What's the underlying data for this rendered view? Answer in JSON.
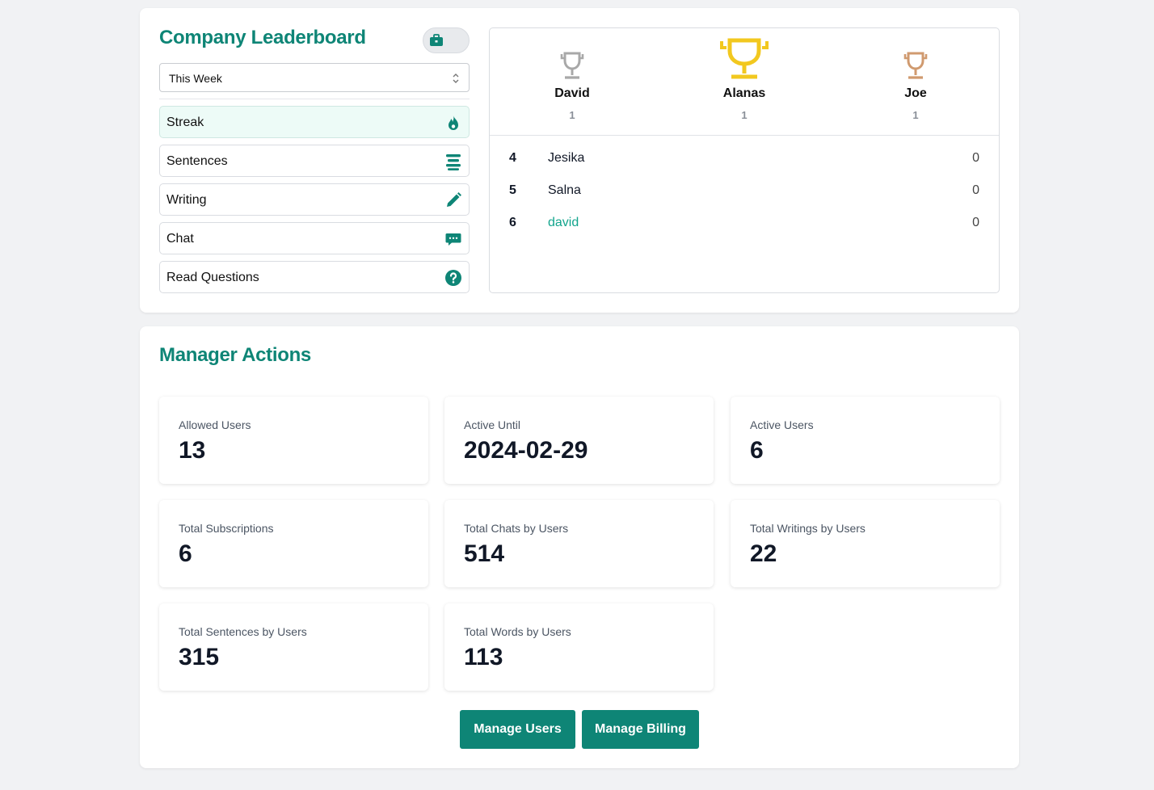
{
  "leaderboard": {
    "title": "Company Leaderboard",
    "period": "This Week",
    "categories": [
      {
        "label": "Streak",
        "icon": "fire-icon",
        "active": true
      },
      {
        "label": "Sentences",
        "icon": "list-icon",
        "active": false
      },
      {
        "label": "Writing",
        "icon": "pencil-icon",
        "active": false
      },
      {
        "label": "Chat",
        "icon": "chat-icon",
        "active": false
      },
      {
        "label": "Read Questions",
        "icon": "question-icon",
        "active": false
      }
    ],
    "podium": [
      {
        "name": "David",
        "score": "1",
        "trophy": "silver",
        "color": "#a8a8a8"
      },
      {
        "name": "Alanas",
        "score": "1",
        "trophy": "gold",
        "color": "#f2c81f"
      },
      {
        "name": "Joe",
        "score": "1",
        "trophy": "bronze",
        "color": "#d09a6f"
      }
    ],
    "rows": [
      {
        "rank": "4",
        "name": "Jesika",
        "score": "0"
      },
      {
        "rank": "5",
        "name": "Salna",
        "score": "0"
      },
      {
        "rank": "6",
        "name": "david",
        "score": "0",
        "current_user": true
      }
    ]
  },
  "manager": {
    "title": "Manager Actions",
    "stats": [
      {
        "label": "Allowed Users",
        "value": "13"
      },
      {
        "label": "Active Until",
        "value": "2024-02-29"
      },
      {
        "label": "Active Users",
        "value": "6"
      },
      {
        "label": "Total Subscriptions",
        "value": "6"
      },
      {
        "label": "Total Chats by Users",
        "value": "514"
      },
      {
        "label": "Total Writings by Users",
        "value": "22"
      },
      {
        "label": "Total Sentences by Users",
        "value": "315"
      },
      {
        "label": "Total Words by Users",
        "value": "113"
      }
    ],
    "buttons": {
      "manage_users": "Manage Users",
      "manage_billing": "Manage Billing"
    }
  },
  "colors": {
    "accent": "#0e8576",
    "current_user": "#13a58d",
    "active_bg": "#edfbf7"
  }
}
